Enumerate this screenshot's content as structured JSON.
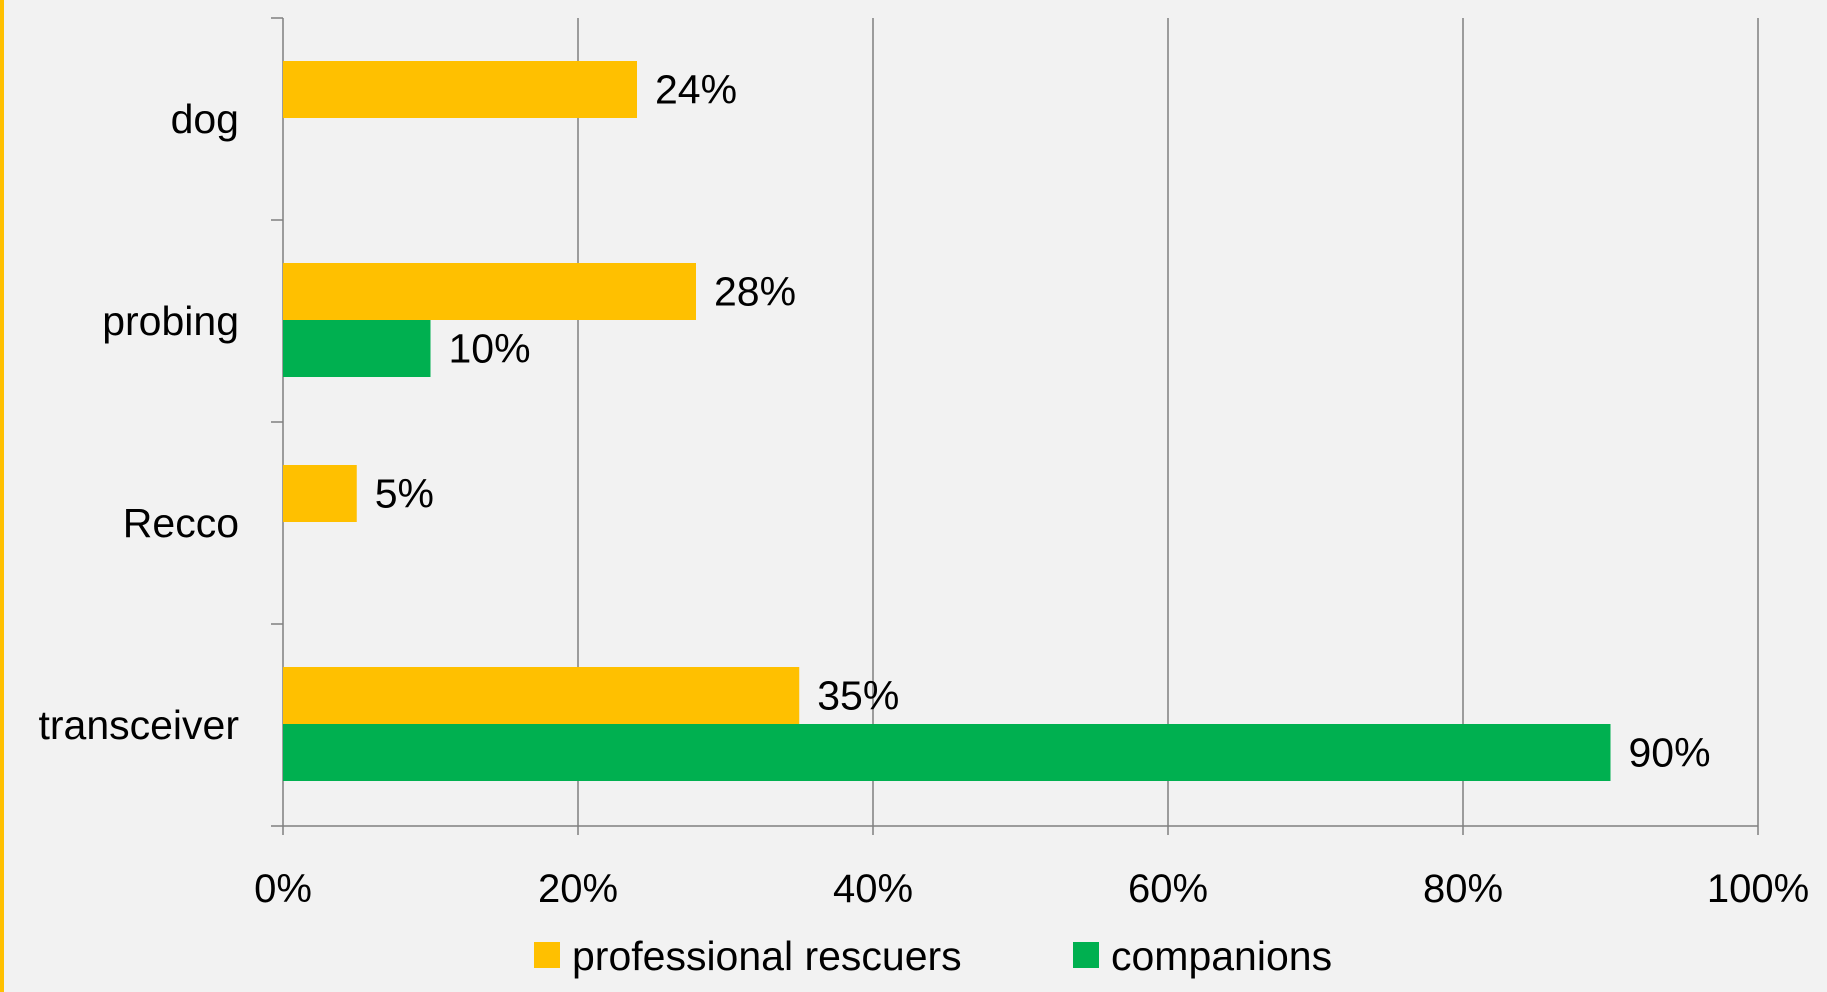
{
  "chart_data": {
    "type": "bar",
    "orientation": "horizontal",
    "categories": [
      "dog",
      "probing",
      "Recco",
      "transceiver"
    ],
    "series": [
      {
        "name": "professional rescuers",
        "color": "#ffc000",
        "values": [
          24,
          28,
          5,
          35
        ],
        "labels": [
          "24%",
          "28%",
          "5%",
          "35%"
        ]
      },
      {
        "name": "companions",
        "color": "#00b050",
        "values": [
          null,
          10,
          null,
          90
        ],
        "labels": [
          null,
          "10%",
          null,
          "90%"
        ]
      }
    ],
    "xlim": [
      0,
      100
    ],
    "xticks": [
      0,
      20,
      40,
      60,
      80,
      100
    ],
    "xtick_labels": [
      "0%",
      "20%",
      "40%",
      "60%",
      "80%",
      "100%"
    ],
    "grid": "vertical",
    "legend_position": "bottom"
  }
}
